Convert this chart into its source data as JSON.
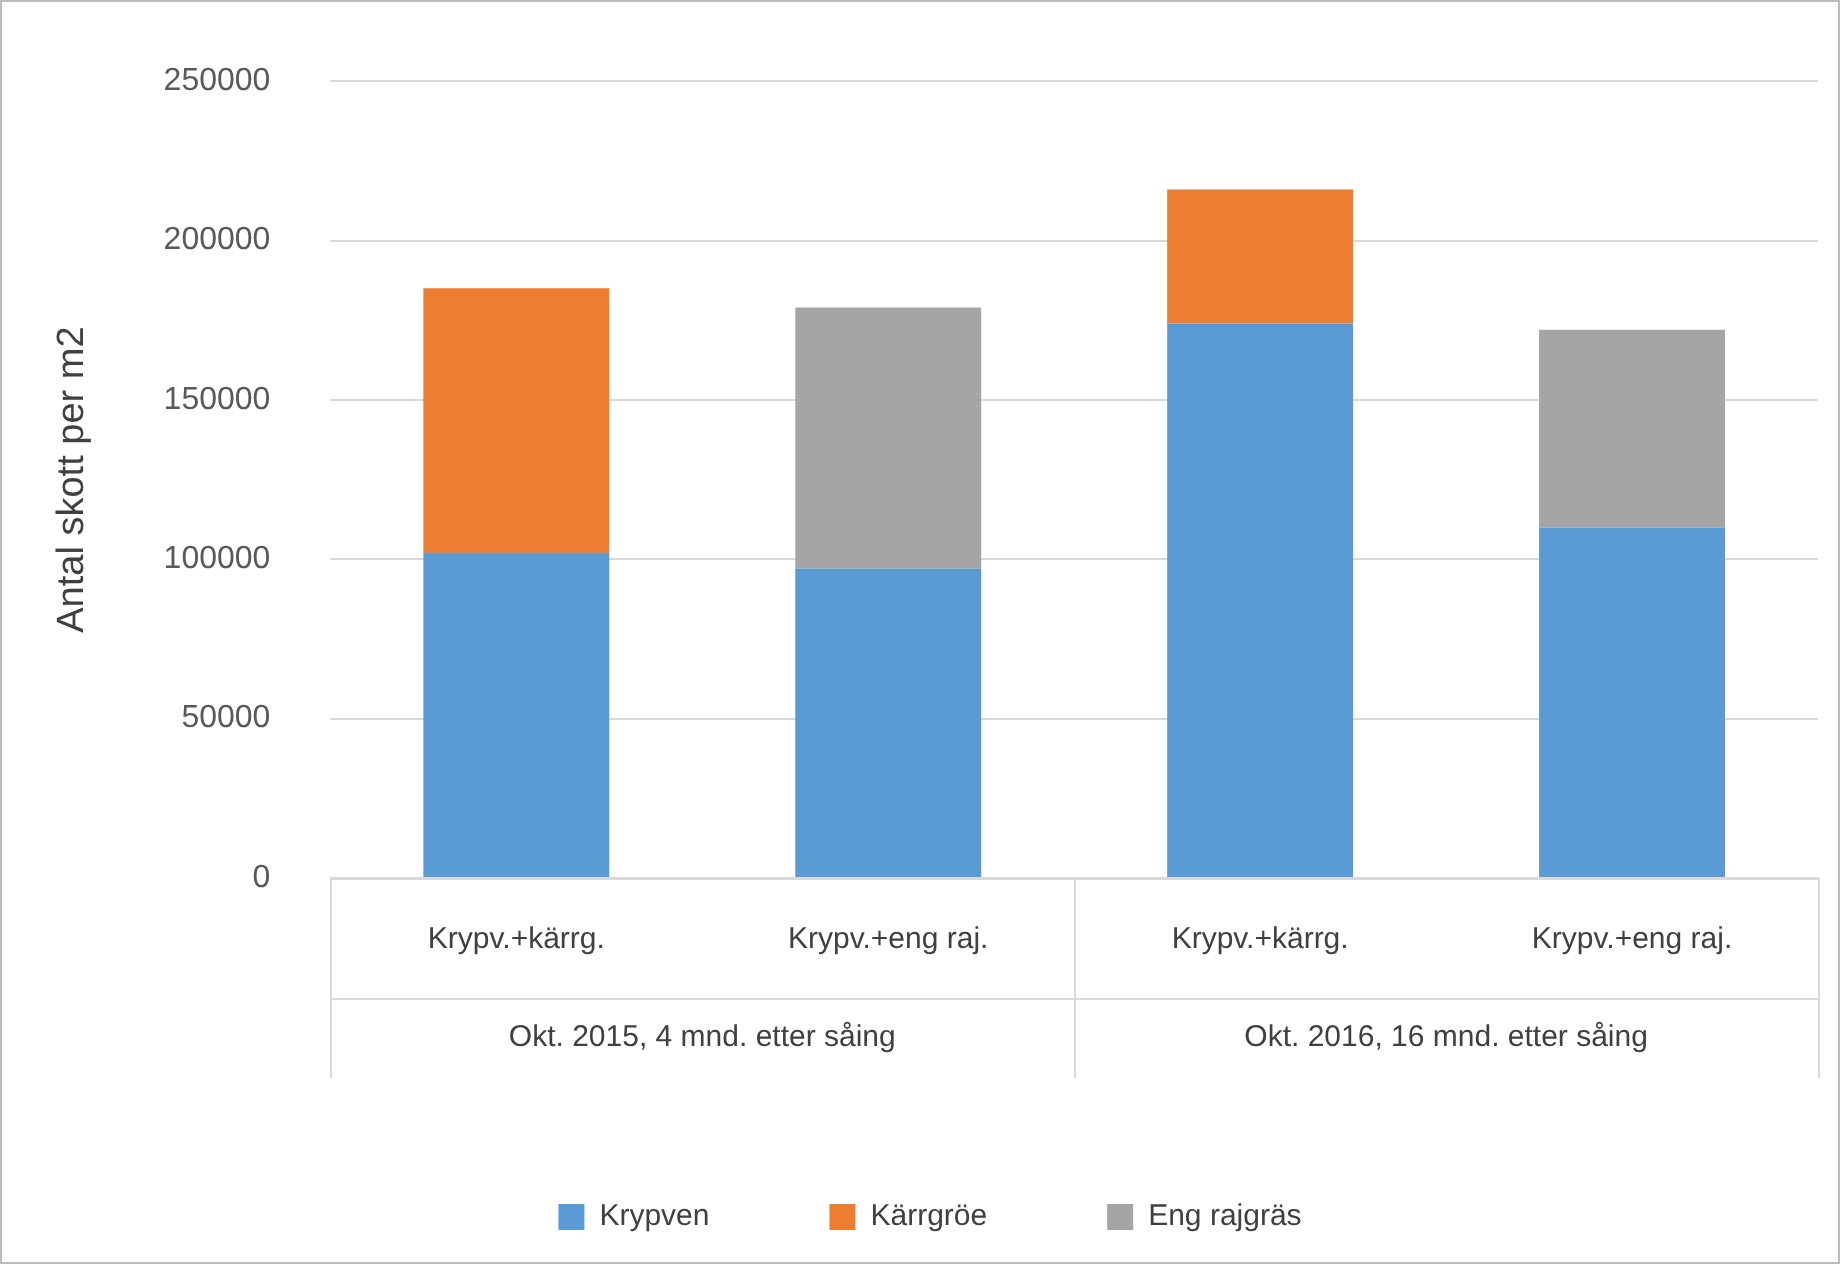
{
  "chart_data": {
    "type": "bar",
    "stacked": true,
    "ylabel": "Antal skott per m2",
    "categories": [
      "Krypv.+kärrg.",
      "Krypv.+eng raj.",
      "Krypv.+kärrg.",
      "Krypv.+eng raj."
    ],
    "series": [
      {
        "name": "Krypven",
        "color": "#5b9bd5",
        "values": [
          102000,
          97000,
          174000,
          110000
        ]
      },
      {
        "name": "Kärrgröe",
        "color": "#ed7d31",
        "values": [
          83000,
          null,
          42000,
          null
        ]
      },
      {
        "name": "Eng rajgräs",
        "color": "#a5a5a5",
        "values": [
          null,
          82000,
          null,
          62000
        ]
      }
    ],
    "annotations": [
      "Okt. 2015, 4 mnd. etter såing",
      "Okt. 2016, 16 mnd. etter såing"
    ],
    "ylim": [
      0,
      250000
    ],
    "yticks": [
      0,
      50000,
      100000,
      150000,
      200000,
      250000
    ],
    "grid": "y",
    "legend": "bottom"
  }
}
